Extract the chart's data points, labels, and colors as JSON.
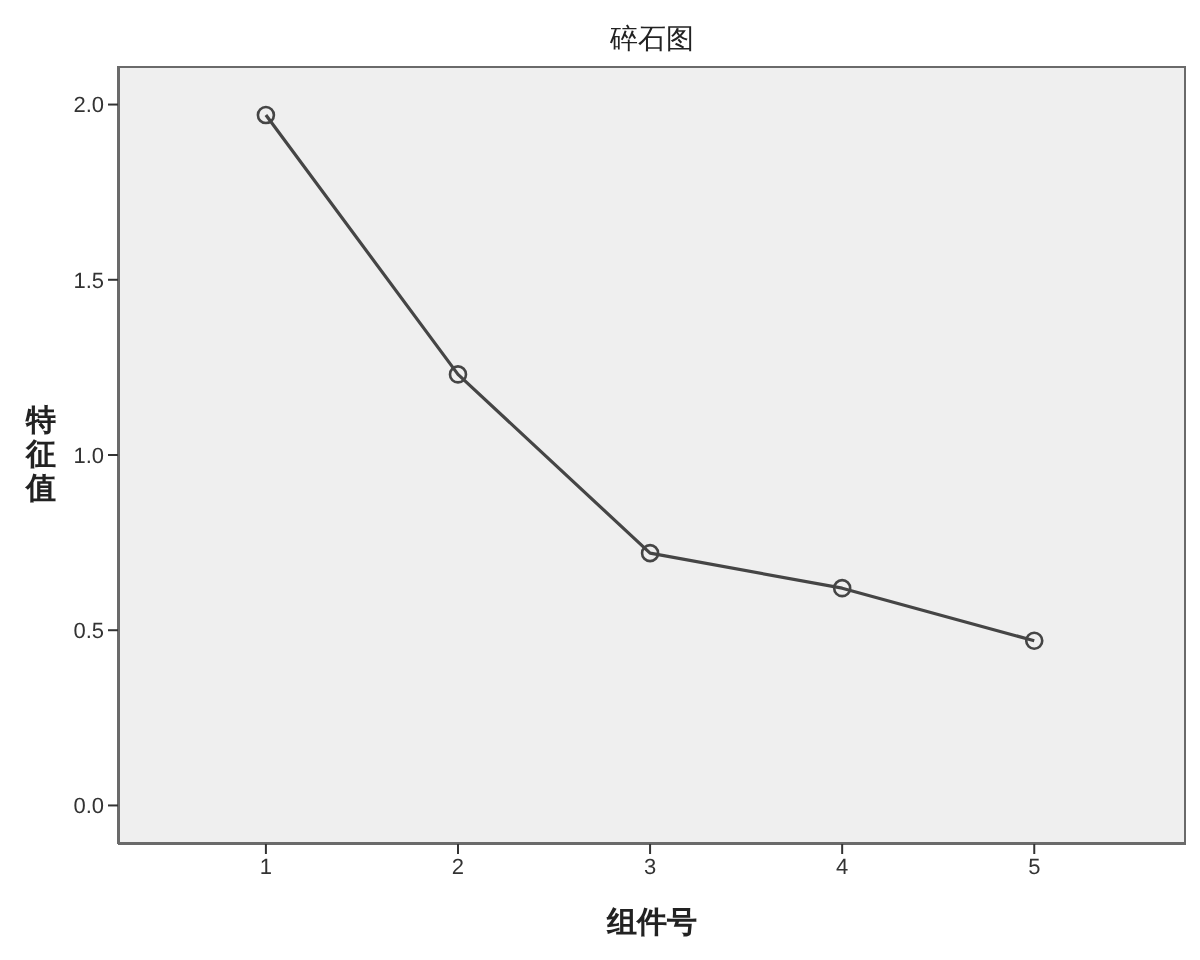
{
  "chart_data": {
    "type": "line",
    "title": "碎石图",
    "xlabel": "组件号",
    "ylabel": "特征值",
    "x": [
      1,
      2,
      3,
      4,
      5
    ],
    "xlim": [
      0.23,
      5.79
    ],
    "xticks": [
      1,
      2,
      3,
      4,
      5
    ],
    "ylim": [
      -0.11,
      2.11
    ],
    "yticks": [
      {
        "value": 0,
        "label": "0.0"
      },
      0.5,
      {
        "value": 1,
        "label": "1.0"
      },
      1.5,
      {
        "value": 2,
        "label": "2.0"
      }
    ],
    "series": [
      {
        "color": "#454545",
        "values": [
          1.97,
          1.23,
          0.72,
          0.62,
          0.47
        ]
      }
    ],
    "marker": "circle",
    "line_style": "solid"
  }
}
